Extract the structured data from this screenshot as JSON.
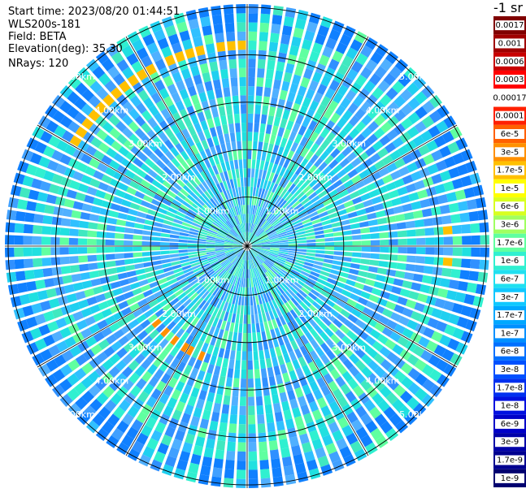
{
  "header": {
    "start_time": "Start time: 2023/08/20 01:44:51",
    "instrument": "WLS200s-181",
    "field": "Field: BETA",
    "elevation": "Elevation(deg): 35.30",
    "nrays": "NRays: 120"
  },
  "colorbar": {
    "unit_label": "-1 sr",
    "ticks": [
      "0.0017",
      "0.001",
      "0.0006",
      "0.0003",
      "0.00017",
      "0.0001",
      "6e-5",
      "3e-5",
      "1.7e-5",
      "1e-5",
      "6e-6",
      "3e-6",
      "1.7e-6",
      "1e-6",
      "6e-7",
      "3e-7",
      "1.7e-7",
      "1e-7",
      "6e-8",
      "3e-8",
      "1.7e-8",
      "1e-8",
      "6e-9",
      "3e-9",
      "1.7e-9",
      "1e-9"
    ],
    "colors": [
      "#800000",
      "#a00000",
      "#c80000",
      "#ff0000",
      "#ffffff",
      "#ff2000",
      "#ff6000",
      "#ff9000",
      "#ffc000",
      "#ffff00",
      "#d8ff20",
      "#a0ff60",
      "#60ffa0",
      "#30f0d0",
      "#20e0f0",
      "#10c8ff",
      "#00a8ff",
      "#0090ff",
      "#0070ff",
      "#0050ff",
      "#0030f0",
      "#0010e0",
      "#0000c8",
      "#0000a8",
      "#000090",
      "#000070"
    ]
  },
  "chart_data": {
    "type": "heatmap",
    "projection": "polar PPI (plan position indicator)",
    "field": "BETA",
    "elevation_deg": 35.3,
    "nrays": 120,
    "range_rings_km": [
      1.0,
      2.0,
      3.0,
      4.0,
      5.0
    ],
    "range_ring_labels": [
      "1.00km",
      "2.00km",
      "3.00km",
      "4.00km",
      "5.00km"
    ],
    "radial_lines_deg": [
      0,
      30,
      60,
      90,
      120,
      150,
      180,
      210,
      240,
      270,
      300,
      330
    ],
    "max_range_km": 5.0,
    "dominant_value_range": [
      "1e-7",
      "1.7e-6"
    ],
    "features": [
      {
        "range_km": 4.1,
        "az_from_deg": 300,
        "az_to_deg": 360,
        "value": "1.7e-5"
      },
      {
        "range_km": 2.5,
        "az_from_deg": 200,
        "az_to_deg": 230,
        "value": "3e-5"
      },
      {
        "range_km": 4.1,
        "az_from_deg": 80,
        "az_to_deg": 100,
        "value": "1.7e-5"
      }
    ]
  }
}
